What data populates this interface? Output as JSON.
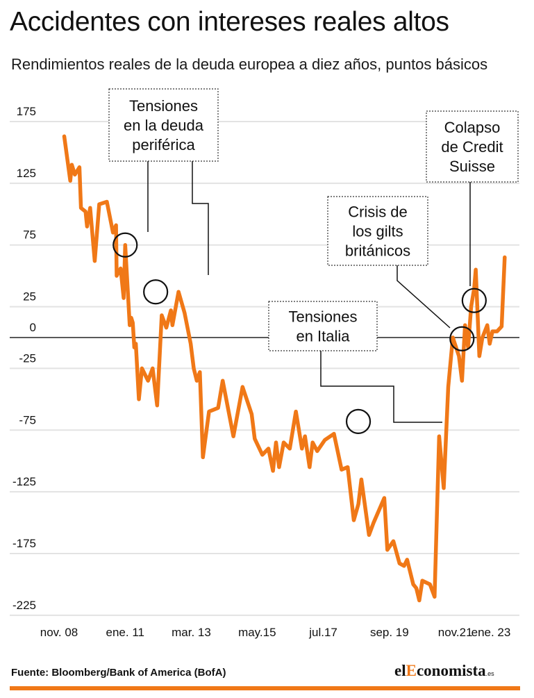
{
  "header": {
    "title": "Accidentes con intereses reales altos",
    "subtitle": "Rendimientos reales de la deuda europea a diez años, puntos básicos"
  },
  "footer": {
    "source": "Fuente: Bloomberg/Bank of America (BofA)",
    "brand_prefix": "el",
    "brand_accent": "E",
    "brand_rest": "conomista",
    "brand_suffix": ".es"
  },
  "colors": {
    "line": "#f07817",
    "grid": "#e3e3e3",
    "zero": "#222222",
    "text": "#111111"
  },
  "chart_data": {
    "type": "line",
    "title": "Accidentes con intereses reales altos",
    "subtitle": "Rendimientos reales de la deuda europea a diez años, puntos básicos",
    "xlabel": "",
    "ylabel": "",
    "ylim": [
      -225,
      175
    ],
    "yticks": [
      175,
      125,
      75,
      25,
      0,
      -25,
      -75,
      -125,
      -175,
      -225
    ],
    "xlim": [
      2008.83,
      2023.6
    ],
    "xticks": [
      {
        "label": "nov. 08",
        "x": 2008.83
      },
      {
        "label": "ene. 11",
        "x": 2011.0
      },
      {
        "label": "mar. 13",
        "x": 2013.17
      },
      {
        "label": "may.15",
        "x": 2015.33
      },
      {
        "label": "jul.17",
        "x": 2017.5
      },
      {
        "label": "sep. 19",
        "x": 2019.67
      },
      {
        "label": "nov.21",
        "x": 2021.83
      },
      {
        "label": "ene. 23",
        "x": 2023.0
      }
    ],
    "grid": true,
    "series": [
      {
        "x": [
          2009.0,
          2009.2,
          2009.25,
          2009.35,
          2009.5,
          2009.55,
          2009.7,
          2009.75,
          2009.85,
          2010.0,
          2010.15,
          2010.4,
          2010.6,
          2010.7,
          2010.72,
          2010.85,
          2010.95,
          2011.0,
          2011.15,
          2011.2,
          2011.25,
          2011.3,
          2011.35,
          2011.45,
          2011.55,
          2011.75,
          2011.9,
          2012.05,
          2012.2,
          2012.35,
          2012.5,
          2012.55,
          2012.75,
          2012.95,
          2013.15,
          2013.25,
          2013.35,
          2013.45,
          2013.55,
          2013.75,
          2014.05,
          2014.2,
          2014.55,
          2014.85,
          2015.15,
          2015.25,
          2015.5,
          2015.7,
          2015.85,
          2015.95,
          2016.05,
          2016.2,
          2016.4,
          2016.6,
          2016.7,
          2016.8,
          2016.9,
          2017.05,
          2017.15,
          2017.3,
          2017.55,
          2017.85,
          2018.1,
          2018.3,
          2018.5,
          2018.65,
          2018.75,
          2019.0,
          2019.15,
          2019.5,
          2019.6,
          2019.8,
          2020.0,
          2020.15,
          2020.25,
          2020.45,
          2020.55,
          2020.65,
          2020.75,
          2021.0,
          2021.15,
          2021.3,
          2021.45,
          2021.6,
          2021.75,
          2021.95,
          2022.05,
          2022.15,
          2022.25,
          2022.35,
          2022.45,
          2022.5,
          2022.62,
          2022.72,
          2022.88,
          2022.96,
          2023.05,
          2023.2,
          2023.35,
          2023.45
        ],
        "values": [
          163,
          127,
          140,
          132,
          138,
          105,
          102,
          90,
          105,
          62,
          108,
          110,
          85,
          91,
          50,
          56,
          32,
          75,
          10,
          16,
          12,
          -8,
          -5,
          -50,
          -25,
          -35,
          -25,
          -55,
          18,
          8,
          22,
          10,
          37,
          20,
          -5,
          -25,
          -35,
          -28,
          -97,
          -60,
          -57,
          -35,
          -80,
          -40,
          -62,
          -82,
          -95,
          -90,
          -108,
          -85,
          -105,
          -85,
          -90,
          -60,
          -75,
          -90,
          -80,
          -105,
          -85,
          -92,
          -83,
          -78,
          -107,
          -105,
          -148,
          -135,
          -115,
          -160,
          -150,
          -130,
          -172,
          -165,
          -183,
          -185,
          -180,
          -200,
          -203,
          -213,
          -197,
          -200,
          -210,
          -80,
          -122,
          -40,
          0,
          -15,
          -35,
          10,
          -8,
          25,
          40,
          55,
          -15,
          0,
          10,
          -5,
          5,
          5,
          9,
          65
        ]
      }
    ],
    "annotations": [
      {
        "text": [
          "Tensiones",
          "en la deuda",
          "periférica"
        ],
        "x": 2011.0,
        "y": 75
      },
      {
        "text": [
          "Tensiones",
          "en la deuda",
          "periférica"
        ],
        "x": 2012.0,
        "y": 37
      },
      {
        "text": [
          "Tensiones",
          "en Italia"
        ],
        "x": 2018.65,
        "y": -68
      },
      {
        "text": [
          "Crisis de",
          "los gilts",
          "británicos"
        ],
        "x": 2022.05,
        "y": -1
      },
      {
        "text": [
          "Colapso",
          "de Credit",
          "Suisse"
        ],
        "x": 2022.45,
        "y": 30
      }
    ]
  }
}
